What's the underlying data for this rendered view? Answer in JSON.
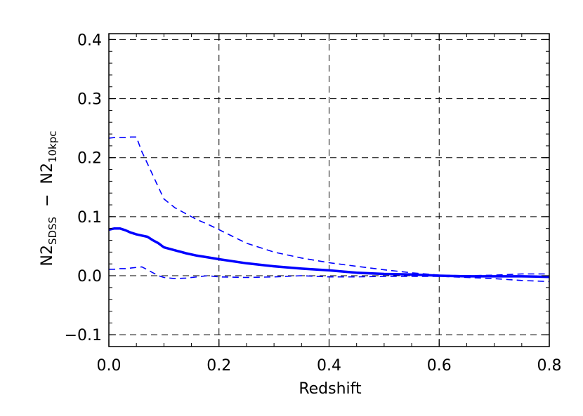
{
  "chart_data": {
    "type": "line",
    "title": "",
    "xlabel": "Redshift",
    "ylabel": {
      "part1": "N2",
      "sub1": "SDSS",
      "minus": "−",
      "part2": "N2",
      "sub2": "10kpc"
    },
    "xlim": [
      0.0,
      0.8
    ],
    "ylim": [
      -0.12,
      0.41
    ],
    "xticks": [
      0.0,
      0.2,
      0.4,
      0.6,
      0.8
    ],
    "xtick_labels": [
      "0.0",
      "0.2",
      "0.4",
      "0.6",
      "0.8"
    ],
    "yticks": [
      -0.1,
      0.0,
      0.1,
      0.2,
      0.3,
      0.4
    ],
    "ytick_labels": [
      "−0.1",
      "0.0",
      "0.1",
      "0.2",
      "0.3",
      "0.4"
    ],
    "grid": "dashed at major ticks",
    "colors": {
      "series": "#0000ff",
      "grid": "#000000"
    },
    "series": [
      {
        "style": "solid-thick",
        "x": [
          0.0,
          0.01,
          0.02,
          0.03,
          0.04,
          0.05,
          0.06,
          0.07,
          0.08,
          0.09,
          0.1,
          0.12,
          0.14,
          0.16,
          0.18,
          0.2,
          0.25,
          0.3,
          0.35,
          0.4,
          0.45,
          0.5,
          0.55,
          0.6,
          0.65,
          0.7,
          0.75,
          0.8
        ],
        "y": [
          0.078,
          0.08,
          0.08,
          0.077,
          0.073,
          0.07,
          0.068,
          0.066,
          0.06,
          0.055,
          0.048,
          0.043,
          0.038,
          0.034,
          0.031,
          0.028,
          0.021,
          0.016,
          0.012,
          0.009,
          0.005,
          0.003,
          0.002,
          0.0,
          -0.001,
          -0.001,
          -0.001,
          -0.002
        ]
      },
      {
        "style": "dashed-upper",
        "x": [
          0.0,
          0.01,
          0.02,
          0.03,
          0.04,
          0.05,
          0.06,
          0.07,
          0.08,
          0.09,
          0.1,
          0.12,
          0.14,
          0.16,
          0.18,
          0.2,
          0.25,
          0.3,
          0.35,
          0.4,
          0.45,
          0.5,
          0.55,
          0.6,
          0.65,
          0.7,
          0.75,
          0.8
        ],
        "y": [
          0.233,
          0.234,
          0.234,
          0.234,
          0.235,
          0.235,
          0.21,
          0.19,
          0.17,
          0.15,
          0.13,
          0.115,
          0.105,
          0.095,
          0.087,
          0.078,
          0.055,
          0.04,
          0.03,
          0.022,
          0.016,
          0.01,
          0.005,
          0.001,
          0.0,
          0.001,
          0.003,
          0.003
        ]
      },
      {
        "style": "dashed-lower",
        "x": [
          0.0,
          0.01,
          0.02,
          0.03,
          0.04,
          0.05,
          0.06,
          0.07,
          0.08,
          0.09,
          0.1,
          0.12,
          0.14,
          0.16,
          0.18,
          0.2,
          0.25,
          0.3,
          0.35,
          0.4,
          0.45,
          0.5,
          0.55,
          0.6,
          0.65,
          0.7,
          0.75,
          0.8
        ],
        "y": [
          0.011,
          0.011,
          0.012,
          0.012,
          0.013,
          0.014,
          0.015,
          0.01,
          0.005,
          0.0,
          -0.003,
          -0.005,
          -0.004,
          -0.002,
          0.0,
          -0.002,
          -0.003,
          -0.002,
          0.0,
          -0.002,
          -0.002,
          -0.001,
          -0.001,
          -0.001,
          -0.003,
          -0.005,
          -0.008,
          -0.01
        ]
      }
    ]
  }
}
